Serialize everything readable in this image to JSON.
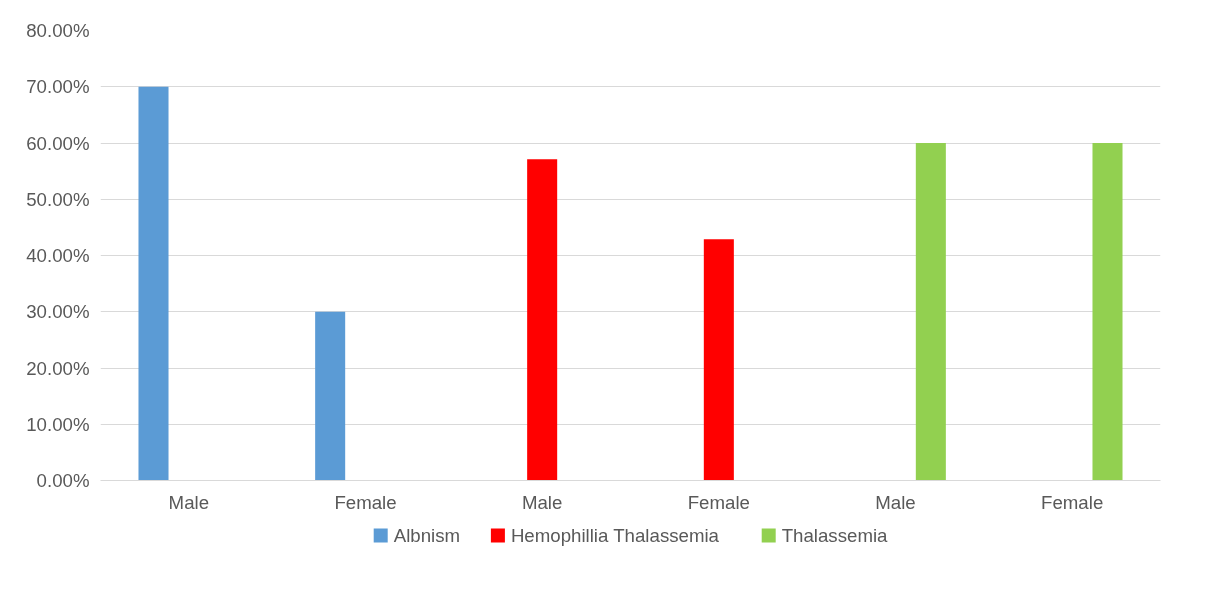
{
  "chart_data": {
    "type": "bar",
    "categories": [
      "Male",
      "Female",
      "Male",
      "Female",
      "Male",
      "Female"
    ],
    "series": [
      {
        "name": "Albnism",
        "color": "#5b9bd5",
        "values": [
          70,
          30,
          null,
          null,
          null,
          null
        ]
      },
      {
        "name": "Hemophillia Thalassemia",
        "color": "#ff0000",
        "values": [
          null,
          null,
          57.1,
          42.9,
          null,
          null
        ]
      },
      {
        "name": "Thalassemia",
        "color": "#92d050",
        "values": [
          null,
          null,
          null,
          null,
          60,
          60
        ]
      }
    ],
    "ylim": [
      0,
      80
    ],
    "yticks": [
      {
        "value": 0,
        "label": "0.00%"
      },
      {
        "value": 10,
        "label": "10.00%"
      },
      {
        "value": 20,
        "label": "20.00%"
      },
      {
        "value": 30,
        "label": "30.00%"
      },
      {
        "value": 40,
        "label": "40.00%"
      },
      {
        "value": 50,
        "label": "50.00%"
      },
      {
        "value": 60,
        "label": "60.00%"
      },
      {
        "value": 70,
        "label": "70.00%"
      },
      {
        "value": 80,
        "label": "80.00%"
      }
    ],
    "grid": "y",
    "legend": "bottom"
  }
}
